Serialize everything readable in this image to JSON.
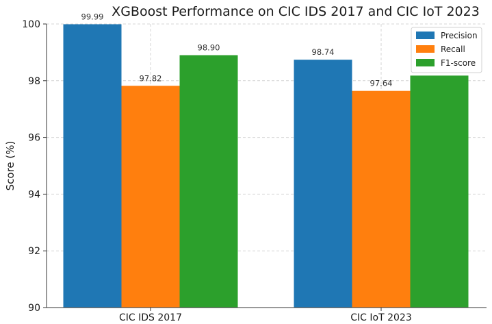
{
  "chart_data": {
    "type": "bar",
    "title": "XGBoost Performance on CIC IDS 2017 and CIC IoT 2023",
    "xlabel": "",
    "ylabel": "Score (%)",
    "ylim": [
      90,
      100
    ],
    "yticks": [
      "90",
      "92",
      "94",
      "96",
      "98",
      "100"
    ],
    "categories": [
      "CIC IDS 2017",
      "CIC IoT 2023"
    ],
    "series": [
      {
        "name": "Precision",
        "values": [
          99.99,
          98.74
        ],
        "labels": [
          "99.99",
          "98.74"
        ],
        "color": "#1f77b4"
      },
      {
        "name": "Recall",
        "values": [
          97.82,
          97.64
        ],
        "labels": [
          "97.82",
          "97.64"
        ],
        "color": "#ff7f0e"
      },
      {
        "name": "F1-score",
        "values": [
          98.9,
          98.18
        ],
        "labels": [
          "98.90",
          ""
        ],
        "color": "#2ca02c"
      }
    ],
    "grid": true,
    "legend_position": "top-right"
  }
}
